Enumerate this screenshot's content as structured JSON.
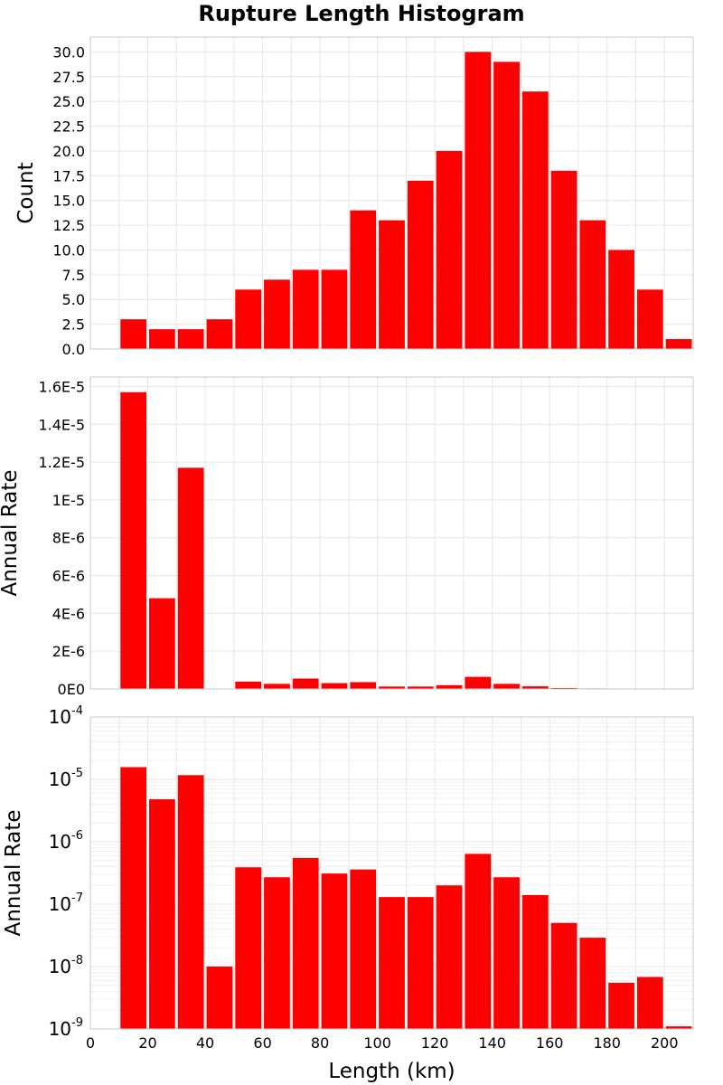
{
  "title": "Rupture Length Histogram",
  "bar_color": "#ff0000",
  "chart_data": [
    {
      "type": "bar",
      "scale": "linear",
      "ylabel": "Count",
      "xlim": [
        0,
        210
      ],
      "ylim": [
        0,
        31.5
      ],
      "grid": true,
      "bin_width": 10,
      "x": [
        15,
        25,
        35,
        45,
        55,
        65,
        75,
        85,
        95,
        105,
        115,
        125,
        135,
        145,
        155,
        165,
        175,
        185,
        195,
        205
      ],
      "values": [
        3,
        2,
        2,
        3,
        6,
        7,
        8,
        8,
        14,
        13,
        17,
        20,
        30,
        29,
        26,
        18,
        13,
        10,
        6,
        1
      ],
      "yticks": [
        0,
        2.5,
        5,
        7.5,
        10,
        12.5,
        15,
        17.5,
        20,
        22.5,
        25,
        27.5,
        30
      ],
      "ytick_labels": [
        "0.0",
        "2.5",
        "5.0",
        "7.5",
        "10.0",
        "12.5",
        "15.0",
        "17.5",
        "20.0",
        "22.5",
        "25.0",
        "27.5",
        "30.0"
      ]
    },
    {
      "type": "bar",
      "scale": "linear",
      "ylabel": "Annual Rate",
      "xlim": [
        0,
        210
      ],
      "ylim": [
        0,
        1.65e-05
      ],
      "grid": true,
      "bin_width": 10,
      "x": [
        15,
        25,
        35,
        45,
        55,
        65,
        75,
        85,
        95,
        105,
        115,
        125,
        135,
        145,
        155,
        165,
        175,
        185,
        195,
        205
      ],
      "values": [
        1.57e-05,
        4.8e-06,
        1.17e-05,
        1e-08,
        3.9e-07,
        2.7e-07,
        5.5e-07,
        3.1e-07,
        3.6e-07,
        1.3e-07,
        1.3e-07,
        2e-07,
        6.4e-07,
        2.7e-07,
        1.4e-07,
        5e-08,
        2.9e-08,
        5.5e-09,
        6.8e-09,
        1.1e-09
      ],
      "yticks": [
        0,
        2e-06,
        4e-06,
        6e-06,
        8e-06,
        1e-05,
        1.2e-05,
        1.4e-05,
        1.6e-05
      ],
      "ytick_labels": [
        "0E0",
        "2E-6",
        "4E-6",
        "6E-6",
        "8E-6",
        "1E-5",
        "1.2E-5",
        "1.4E-5",
        "1.6E-5"
      ]
    },
    {
      "type": "bar",
      "scale": "log",
      "ylabel": "Annual Rate",
      "xlabel": "Length (km)",
      "xlim": [
        0,
        210
      ],
      "ylim": [
        1e-09,
        0.0001
      ],
      "grid": true,
      "bin_width": 10,
      "x": [
        15,
        25,
        35,
        45,
        55,
        65,
        75,
        85,
        95,
        105,
        115,
        125,
        135,
        145,
        155,
        165,
        175,
        185,
        195,
        205
      ],
      "values": [
        1.57e-05,
        4.8e-06,
        1.17e-05,
        1e-08,
        3.9e-07,
        2.7e-07,
        5.5e-07,
        3.1e-07,
        3.6e-07,
        1.3e-07,
        1.3e-07,
        2e-07,
        6.4e-07,
        2.7e-07,
        1.4e-07,
        5e-08,
        2.9e-08,
        5.5e-09,
        6.8e-09,
        1.1e-09
      ],
      "yticks": [
        1e-09,
        1e-08,
        1e-07,
        1e-06,
        1e-05,
        0.0001
      ],
      "ytick_base": [
        "10",
        "10",
        "10",
        "10",
        "10",
        "10"
      ],
      "ytick_exp": [
        "-9",
        "-8",
        "-7",
        "-6",
        "-5",
        "-4"
      ],
      "xticks": [
        0,
        20,
        40,
        60,
        80,
        100,
        120,
        140,
        160,
        180,
        200
      ],
      "xtick_labels": [
        "0",
        "20",
        "40",
        "60",
        "80",
        "100",
        "120",
        "140",
        "160",
        "180",
        "200"
      ]
    }
  ]
}
